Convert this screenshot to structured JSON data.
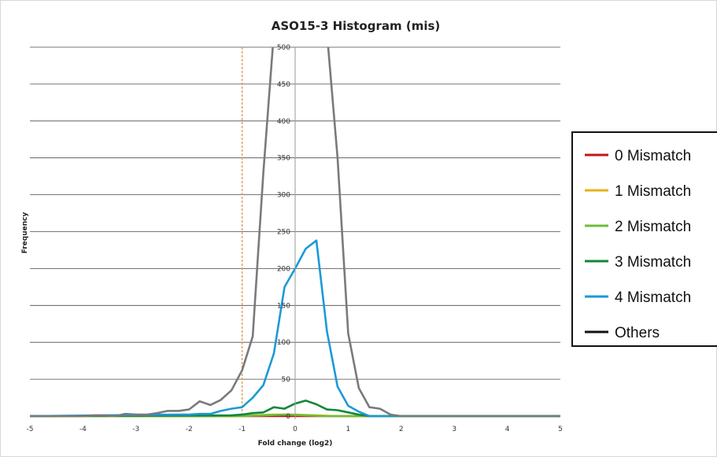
{
  "chart_data": {
    "type": "line",
    "title": "ASO15-3 Histogram (mis)",
    "xlabel": "Fold change (log2)",
    "ylabel": "Frequency",
    "xlim": [
      -5,
      5
    ],
    "ylim": [
      0,
      500
    ],
    "x_ticks": [
      "-5",
      "-4",
      "-3",
      "-2",
      "-1",
      "0",
      "1",
      "2",
      "3",
      "4",
      "5"
    ],
    "y_ticks": [
      "0",
      "50",
      "100",
      "150",
      "200",
      "250",
      "300",
      "350",
      "400",
      "450",
      "500"
    ],
    "grid": true,
    "legend_position": "right",
    "threshold_x": -1,
    "series": [
      {
        "name": "0 Mismatch",
        "color": "#c0161b",
        "points": [
          [
            -5,
            0
          ],
          [
            5,
            0
          ]
        ]
      },
      {
        "name": "1 Mismatch",
        "color": "#e8b21a",
        "points": [
          [
            -5,
            0
          ],
          [
            -1,
            0
          ],
          [
            -0.8,
            1
          ],
          [
            -0.4,
            2
          ],
          [
            0,
            2
          ],
          [
            0.4,
            1
          ],
          [
            0.8,
            0
          ],
          [
            5,
            0
          ]
        ]
      },
      {
        "name": "2 Mismatch",
        "color": "#6bbf3a",
        "points": [
          [
            -5,
            0
          ],
          [
            -1,
            0
          ],
          [
            -0.6,
            1
          ],
          [
            -0.2,
            2
          ],
          [
            0.2,
            1
          ],
          [
            0.6,
            0
          ],
          [
            5,
            0
          ]
        ]
      },
      {
        "name": "3 Mismatch",
        "color": "#11873a",
        "points": [
          [
            -5,
            0
          ],
          [
            -1.2,
            1
          ],
          [
            -1,
            2
          ],
          [
            -0.8,
            4
          ],
          [
            -0.6,
            5
          ],
          [
            -0.4,
            12
          ],
          [
            -0.2,
            10
          ],
          [
            0,
            17
          ],
          [
            0.2,
            21
          ],
          [
            0.4,
            16
          ],
          [
            0.6,
            9
          ],
          [
            0.8,
            8
          ],
          [
            1,
            5
          ],
          [
            1.2,
            2
          ],
          [
            1.4,
            0
          ],
          [
            5,
            0
          ]
        ]
      },
      {
        "name": "4 Mismatch",
        "color": "#1b9ad6",
        "points": [
          [
            -5,
            0
          ],
          [
            -2.2,
            2
          ],
          [
            -2,
            2
          ],
          [
            -1.8,
            3
          ],
          [
            -1.6,
            3
          ],
          [
            -1.4,
            7
          ],
          [
            -1.2,
            10
          ],
          [
            -1,
            12
          ],
          [
            -0.8,
            25
          ],
          [
            -0.6,
            42
          ],
          [
            -0.4,
            85
          ],
          [
            -0.2,
            175
          ],
          [
            0,
            200
          ],
          [
            0.2,
            227
          ],
          [
            0.4,
            238
          ],
          [
            0.6,
            115
          ],
          [
            0.8,
            40
          ],
          [
            1,
            14
          ],
          [
            1.2,
            6
          ],
          [
            1.4,
            0
          ],
          [
            5,
            0
          ]
        ]
      },
      {
        "name": "Others",
        "color": "#7a7a7a",
        "points": [
          [
            -5,
            0
          ],
          [
            -4,
            0
          ],
          [
            -3.8,
            1
          ],
          [
            -3.6,
            1
          ],
          [
            -3.4,
            0
          ],
          [
            -3.2,
            3
          ],
          [
            -3,
            2
          ],
          [
            -2.8,
            2
          ],
          [
            -2.6,
            4
          ],
          [
            -2.4,
            7
          ],
          [
            -2.2,
            7
          ],
          [
            -2,
            9
          ],
          [
            -1.8,
            20
          ],
          [
            -1.6,
            15
          ],
          [
            -1.4,
            22
          ],
          [
            -1.2,
            35
          ],
          [
            -1,
            62
          ],
          [
            -0.8,
            108
          ],
          [
            -0.6,
            330
          ],
          [
            -0.4,
            520
          ],
          [
            0.6,
            520
          ],
          [
            0.8,
            350
          ],
          [
            1,
            112
          ],
          [
            1.2,
            38
          ],
          [
            1.4,
            12
          ],
          [
            1.6,
            10
          ],
          [
            1.8,
            2
          ],
          [
            2,
            0
          ],
          [
            5,
            0
          ]
        ]
      }
    ]
  }
}
